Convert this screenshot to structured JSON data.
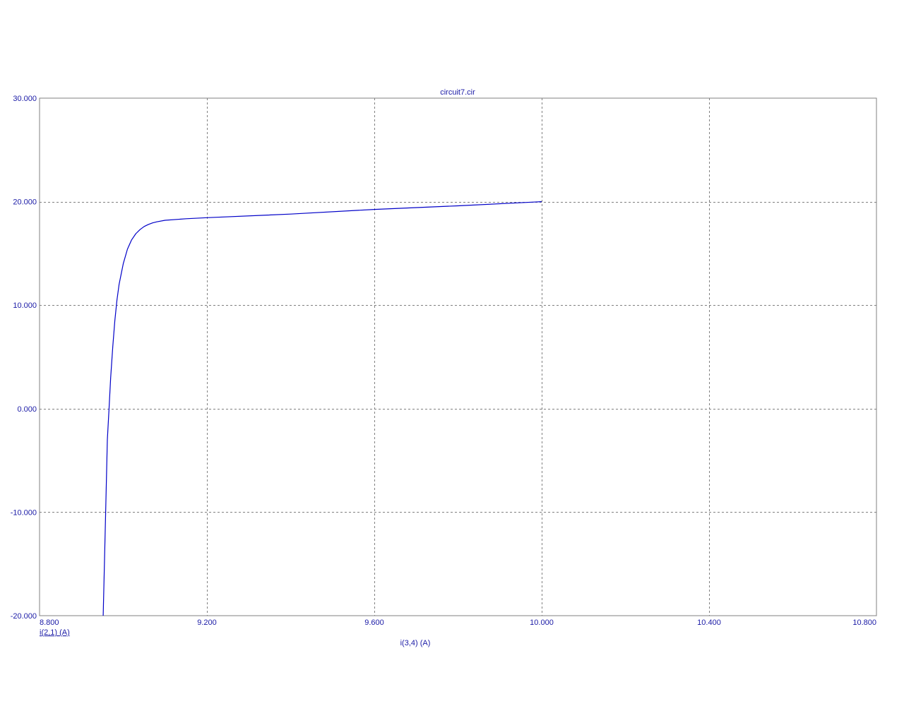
{
  "chart_data": {
    "type": "line",
    "title": "circuit7.cir",
    "xlabel": "i(3,4) (A)",
    "legend": [
      "i(2,1) (A)"
    ],
    "legend_placement": "bottom-left",
    "xlim": [
      8.8,
      10.8
    ],
    "ylim": [
      -20,
      30
    ],
    "x_ticks": [
      "8.800",
      "9.200",
      "9.600",
      "10.000",
      "10.400",
      "10.800"
    ],
    "y_ticks": [
      "30.000",
      "20.000",
      "10.000",
      "0.000",
      "-10.000",
      "-20.000"
    ],
    "x_tick_values": [
      8.8,
      9.2,
      9.6,
      10.0,
      10.4,
      10.8
    ],
    "y_tick_values": [
      30,
      20,
      10,
      0,
      -10,
      -20
    ],
    "grid": true,
    "colors": {
      "series": "#0000c8",
      "text": "#1a1aa6",
      "grid": "#808080",
      "frame": "#808080"
    },
    "series": [
      {
        "name": "i(2,1) (A)",
        "x": [
          8.952,
          8.958,
          8.962,
          8.966,
          8.97,
          8.975,
          8.98,
          8.985,
          8.99,
          9.0,
          9.01,
          9.02,
          9.03,
          9.04,
          9.05,
          9.06,
          9.07,
          9.08,
          9.1,
          9.15,
          9.2,
          9.4,
          9.6,
          9.8,
          10.0
        ],
        "y": [
          -20.0,
          -10.0,
          -3.0,
          0.0,
          3.0,
          6.0,
          8.5,
          10.5,
          12.0,
          14.0,
          15.4,
          16.3,
          16.9,
          17.3,
          17.6,
          17.8,
          17.95,
          18.05,
          18.2,
          18.35,
          18.45,
          18.8,
          19.25,
          19.6,
          20.0
        ]
      }
    ]
  }
}
